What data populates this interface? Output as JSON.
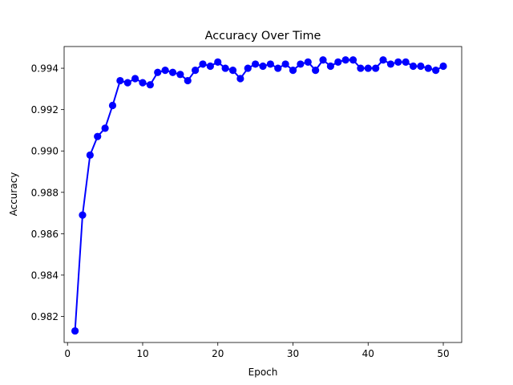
{
  "chart_data": {
    "type": "line",
    "title": "Accuracy Over Time",
    "xlabel": "Epoch",
    "ylabel": "Accuracy",
    "xlim": [
      -0.45,
      52.45
    ],
    "ylim": [
      0.98074,
      0.99505
    ],
    "x_ticks": [
      0,
      10,
      20,
      30,
      40,
      50
    ],
    "x_tick_labels": [
      "0",
      "10",
      "20",
      "30",
      "40",
      "50"
    ],
    "y_ticks": [
      0.982,
      0.984,
      0.986,
      0.988,
      0.99,
      0.992,
      0.994
    ],
    "y_tick_labels": [
      "0.982",
      "0.984",
      "0.986",
      "0.988",
      "0.990",
      "0.992",
      "0.994"
    ],
    "grid": false,
    "legend": "none",
    "series_color": "#0000ff",
    "marker": "circle",
    "x": [
      1,
      2,
      3,
      4,
      5,
      6,
      7,
      8,
      9,
      10,
      11,
      12,
      13,
      14,
      15,
      16,
      17,
      18,
      19,
      20,
      21,
      22,
      23,
      24,
      25,
      26,
      27,
      28,
      29,
      30,
      31,
      32,
      33,
      34,
      35,
      36,
      37,
      38,
      39,
      40,
      41,
      42,
      43,
      44,
      45,
      46,
      47,
      48,
      49,
      50
    ],
    "values": [
      0.9813,
      0.9869,
      0.9898,
      0.9907,
      0.9911,
      0.9922,
      0.9934,
      0.9933,
      0.9935,
      0.9933,
      0.9932,
      0.9938,
      0.9939,
      0.9938,
      0.9937,
      0.9934,
      0.9939,
      0.9942,
      0.9941,
      0.9943,
      0.994,
      0.9939,
      0.9935,
      0.994,
      0.9942,
      0.9941,
      0.9942,
      0.994,
      0.9942,
      0.9939,
      0.9942,
      0.9943,
      0.9939,
      0.9944,
      0.9941,
      0.9943,
      0.9944,
      0.9944,
      0.994,
      0.994,
      0.994,
      0.9944,
      0.9942,
      0.9943,
      0.9943,
      0.9941,
      0.9941,
      0.994,
      0.9939,
      0.9941
    ]
  }
}
